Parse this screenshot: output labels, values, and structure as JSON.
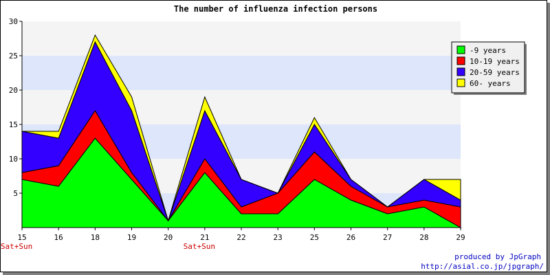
{
  "chart_data": {
    "type": "area",
    "stacked": true,
    "title": "The number of influenza infection persons",
    "xlabel": "",
    "ylabel": "",
    "x": [
      "15",
      "16",
      "18",
      "19",
      "20",
      "21",
      "22",
      "23",
      "25",
      "26",
      "27",
      "28",
      "29"
    ],
    "sublabels": [
      "Sat+Sun",
      "",
      "",
      "",
      "",
      "Sat+Sun",
      "",
      "",
      "",
      "",
      "",
      "",
      ""
    ],
    "ylim": [
      0,
      30
    ],
    "yticks": [
      5,
      10,
      15,
      20,
      25,
      30
    ],
    "series": [
      {
        "name": "-9 years",
        "color": "#00ff00",
        "values": [
          7,
          6,
          13,
          7,
          1,
          8,
          2,
          2,
          7,
          4,
          2,
          3,
          0
        ]
      },
      {
        "name": "10-19 years",
        "color": "#ff0000",
        "values": [
          1,
          3,
          4,
          1,
          0,
          2,
          1,
          3,
          4,
          2,
          1,
          1,
          3
        ]
      },
      {
        "name": "20-59 years",
        "color": "#3300ff",
        "values": [
          6,
          4,
          10,
          9,
          0,
          7,
          4,
          0,
          4,
          1,
          0,
          3,
          1
        ]
      },
      {
        "name": "60- years",
        "color": "#ffff00",
        "values": [
          0,
          1,
          1,
          2,
          0,
          2,
          0,
          0,
          1,
          0,
          0,
          0,
          3
        ]
      }
    ],
    "band_colors": [
      "#dde6fa",
      "#f4f4f4"
    ],
    "legend_position": "top-right",
    "sublabel_color": "#cc0000"
  },
  "credit": {
    "line1": "produced by JpGraph",
    "line2": "http://asial.co.jp/jpgraph/"
  }
}
